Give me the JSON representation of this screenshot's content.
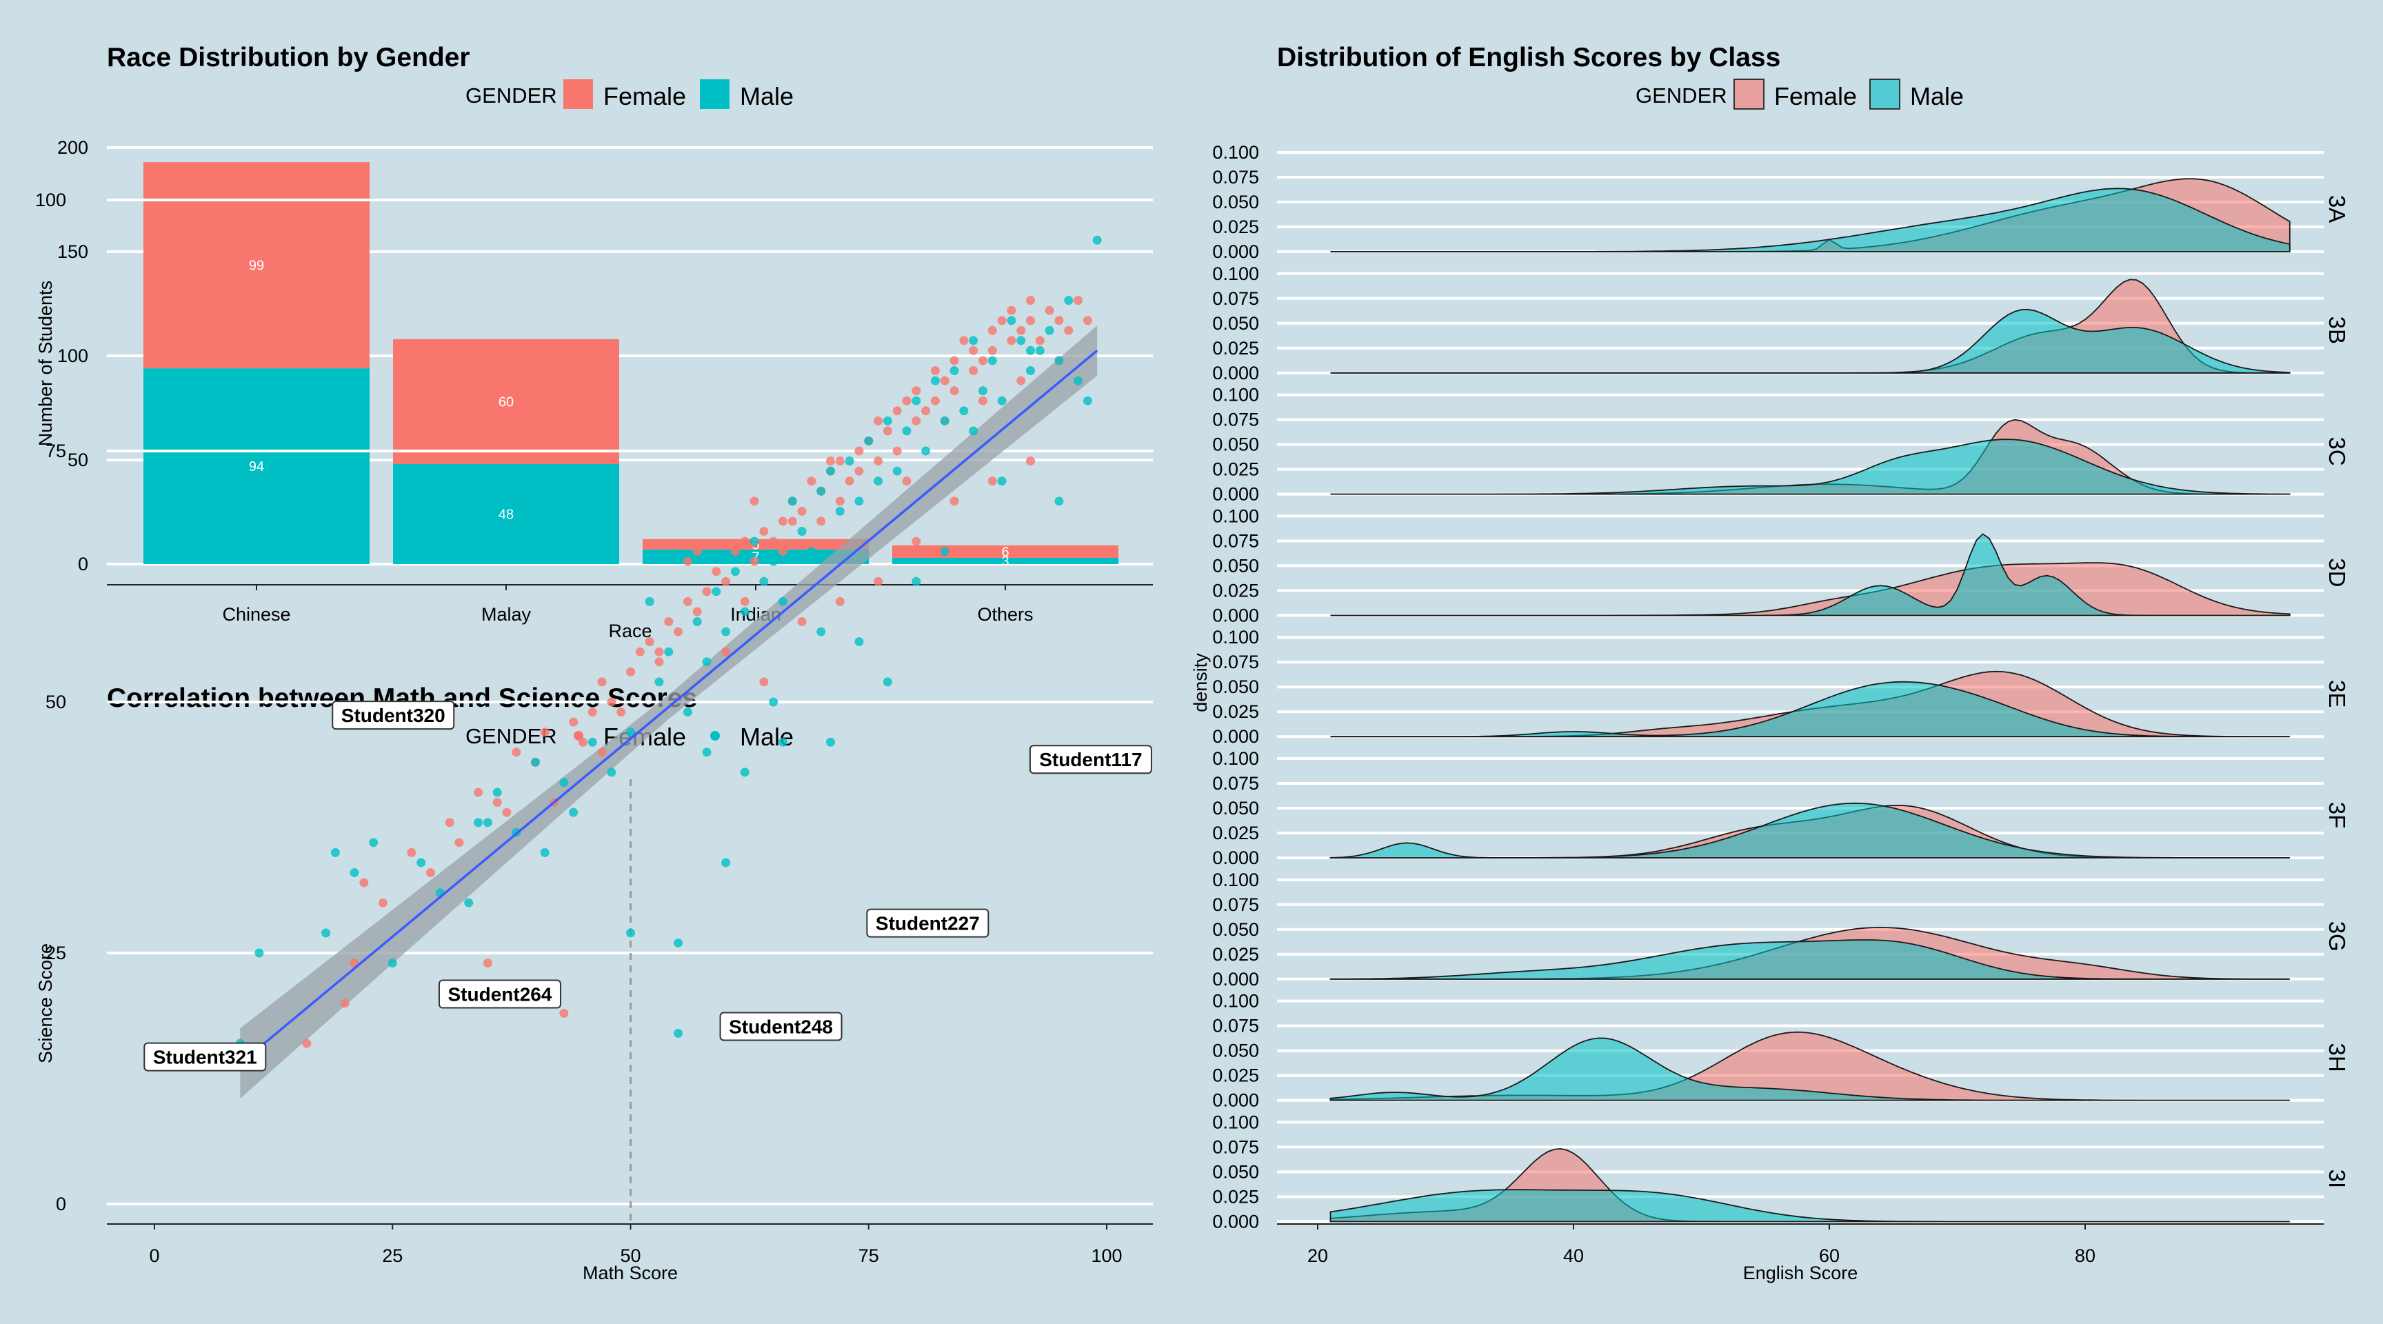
{
  "colors": {
    "female": "#F8766D",
    "male": "#00BFC4",
    "grid": "#ffffff",
    "fit": "#3a5cff",
    "band": "#9aa3a8",
    "refline": "#9a9a9a",
    "bg": "#cddfe6"
  },
  "chart_data": [
    {
      "type": "bar",
      "title": "Race Distribution by Gender",
      "legend_title": "GENDER",
      "xlabel": "Race",
      "ylabel": "Number of Students",
      "categories": [
        "Chinese",
        "Malay",
        "Indian",
        "Others"
      ],
      "series": [
        {
          "name": "Female",
          "values": [
            99,
            60,
            5,
            6
          ]
        },
        {
          "name": "Male",
          "values": [
            94,
            48,
            7,
            3
          ]
        }
      ],
      "ylim": [
        0,
        200
      ],
      "yticks": [
        0,
        50,
        100,
        150,
        200
      ],
      "stacked": true,
      "legend_position": "top"
    },
    {
      "type": "scatter",
      "title": "Correlation between Math and Science Scores",
      "legend_title": "GENDER",
      "xlabel": "Math Score",
      "ylabel": "Science Score",
      "xlim": [
        -9,
        100
      ],
      "ylim": [
        -9,
        105
      ],
      "xticks": [
        0,
        25,
        50,
        75,
        100
      ],
      "yticks": [
        0,
        25,
        50,
        75,
        100
      ],
      "ref_lines": {
        "x": 50,
        "y": 50
      },
      "fit": {
        "type": "linear",
        "x0": 9,
        "y0": 14,
        "x1": 99,
        "y1": 85
      },
      "series": [
        {
          "name": "Female",
          "x": [
            9,
            16,
            20,
            21,
            22,
            24,
            27,
            29,
            31,
            32,
            34,
            36,
            37,
            38,
            40,
            41,
            42,
            44,
            45,
            46,
            47,
            48,
            49,
            50,
            51,
            52,
            53,
            54,
            55,
            56,
            57,
            58,
            59,
            60,
            61,
            62,
            62,
            63,
            64,
            65,
            66,
            66,
            67,
            68,
            69,
            70,
            70,
            71,
            72,
            72,
            73,
            74,
            74,
            75,
            76,
            76,
            77,
            78,
            78,
            79,
            80,
            80,
            81,
            82,
            82,
            83,
            84,
            84,
            85,
            86,
            86,
            87,
            88,
            88,
            89,
            90,
            90,
            91,
            92,
            92,
            93,
            94,
            95,
            96,
            97,
            98,
            56,
            60,
            64,
            68,
            72,
            76,
            80,
            84,
            88,
            92,
            35,
            43,
            47,
            53,
            57,
            63,
            67,
            71,
            75,
            79,
            83,
            87,
            91,
            95
          ],
          "y": [
            15,
            16,
            20,
            24,
            32,
            30,
            35,
            33,
            38,
            36,
            41,
            40,
            39,
            45,
            44,
            47,
            40,
            48,
            46,
            49,
            52,
            50,
            49,
            53,
            55,
            56,
            54,
            58,
            57,
            60,
            59,
            61,
            63,
            62,
            65,
            60,
            66,
            64,
            67,
            66,
            68,
            65,
            70,
            69,
            72,
            68,
            71,
            73,
            70,
            74,
            72,
            75,
            73,
            76,
            74,
            78,
            77,
            79,
            75,
            80,
            78,
            81,
            79,
            83,
            80,
            82,
            84,
            81,
            86,
            83,
            85,
            84,
            87,
            85,
            88,
            86,
            89,
            87,
            88,
            90,
            86,
            89,
            88,
            87,
            90,
            88,
            64,
            55,
            52,
            58,
            60,
            62,
            66,
            70,
            72,
            74,
            24,
            19,
            45,
            55,
            65,
            70,
            68,
            74,
            76,
            72,
            78,
            80,
            82,
            84
          ]
        },
        {
          "name": "Male",
          "x": [
            9,
            11,
            18,
            19,
            21,
            23,
            25,
            28,
            30,
            33,
            34,
            36,
            38,
            40,
            41,
            43,
            44,
            46,
            48,
            50,
            52,
            53,
            54,
            56,
            57,
            58,
            59,
            60,
            61,
            62,
            63,
            64,
            65,
            66,
            67,
            68,
            69,
            70,
            71,
            72,
            73,
            74,
            75,
            76,
            77,
            78,
            79,
            80,
            81,
            82,
            83,
            84,
            85,
            86,
            87,
            88,
            89,
            90,
            91,
            92,
            93,
            94,
            95,
            96,
            97,
            98,
            99,
            25,
            35,
            42,
            50,
            55,
            58,
            62,
            66,
            71,
            74,
            77,
            80,
            83,
            86,
            89,
            92,
            95,
            55,
            60,
            65,
            70
          ],
          "y": [
            16,
            25,
            27,
            35,
            33,
            36,
            48,
            34,
            31,
            30,
            38,
            41,
            37,
            44,
            35,
            42,
            39,
            46,
            43,
            47,
            60,
            52,
            55,
            49,
            58,
            54,
            61,
            57,
            63,
            59,
            66,
            62,
            64,
            60,
            70,
            67,
            65,
            71,
            73,
            69,
            74,
            70,
            76,
            72,
            78,
            73,
            77,
            80,
            75,
            82,
            78,
            83,
            79,
            86,
            81,
            84,
            80,
            88,
            86,
            83,
            85,
            87,
            84,
            90,
            82,
            80,
            96,
            24,
            38,
            20,
            27,
            26,
            45,
            43,
            46,
            46,
            56,
            52,
            62,
            65,
            77,
            72,
            85,
            70,
            17,
            34,
            50,
            57
          ]
        }
      ],
      "annotations": [
        {
          "label": "Student320",
          "x": 25,
          "y": 48
        },
        {
          "label": "Student117",
          "x": 90,
          "y": 46
        },
        {
          "label": "Student227",
          "x": 77,
          "y": 31
        },
        {
          "label": "Student321",
          "x": 9,
          "y": 15
        },
        {
          "label": "Student264",
          "x": 37,
          "y": 24
        },
        {
          "label": "Student248",
          "x": 55,
          "y": 17
        }
      ],
      "legend_position": "top"
    },
    {
      "type": "area",
      "title": "Distribution of English Scores by Class",
      "legend_title": "GENDER",
      "xlabel": "English Score",
      "ylabel": "density",
      "xlim": [
        19,
        98
      ],
      "xticks": [
        20,
        40,
        60,
        80
      ],
      "yticks": [
        0,
        0.025,
        0.05,
        0.075,
        0.1
      ],
      "ytick_labels": [
        "0.000",
        "0.025",
        "0.050",
        "0.075",
        "0.100"
      ],
      "ylim": [
        0,
        0.1
      ],
      "density_x_range": [
        21,
        96
      ],
      "legend_position": "top",
      "panels": [
        {
          "name": "3A",
          "female": [
            [
              60,
              0.5,
              0.01
            ],
            [
              80,
              8,
              0.045
            ],
            [
              90,
              5,
              0.05
            ]
          ],
          "male": [
            [
              72,
              9,
              0.03
            ],
            [
              84,
              6,
              0.05
            ]
          ]
        },
        {
          "name": "3B",
          "female": [
            [
              77,
              4,
              0.04
            ],
            [
              84,
              2.5,
              0.085
            ]
          ],
          "male": [
            [
              75,
              3,
              0.06
            ],
            [
              84,
              4,
              0.045
            ]
          ]
        },
        {
          "name": "3C",
          "female": [
            [
              74,
              2,
              0.06
            ],
            [
              79,
              3,
              0.05
            ],
            [
              60,
              6,
              0.01
            ]
          ],
          "male": [
            [
              65,
              3,
              0.016
            ],
            [
              74,
              6,
              0.055
            ],
            [
              54,
              6,
              0.008
            ]
          ]
        },
        {
          "name": "3D",
          "female": [
            [
              74,
              8,
              0.05
            ],
            [
              84,
              4,
              0.025
            ],
            [
              60,
              3,
              0.005
            ]
          ],
          "male": [
            [
              72,
              1.3,
              0.08
            ],
            [
              64,
              2.5,
              0.03
            ],
            [
              77,
              2,
              0.04
            ]
          ]
        },
        {
          "name": "3E",
          "female": [
            [
              74,
              5,
              0.055
            ],
            [
              62,
              8,
              0.03
            ],
            [
              47,
              3,
              0.003
            ]
          ],
          "male": [
            [
              64,
              6,
              0.048
            ],
            [
              72,
              5,
              0.02
            ],
            [
              40,
              3,
              0.005
            ]
          ]
        },
        {
          "name": "3F",
          "female": [
            [
              66,
              5,
              0.05
            ],
            [
              55,
              5,
              0.028
            ]
          ],
          "male": [
            [
              27,
              2,
              0.015
            ],
            [
              62,
              7,
              0.055
            ]
          ]
        },
        {
          "name": "3G",
          "female": [
            [
              64,
              8,
              0.052
            ],
            [
              80,
              4,
              0.008
            ]
          ],
          "male": [
            [
              54,
              8,
              0.035
            ],
            [
              66,
              5,
              0.025
            ],
            [
              36,
              5,
              0.005
            ]
          ]
        },
        {
          "name": "3H",
          "female": [
            [
              56,
              5,
              0.048
            ],
            [
              62,
              6,
              0.03
            ],
            [
              36,
              8,
              0.005
            ]
          ],
          "male": [
            [
              42,
              4,
              0.061
            ],
            [
              26,
              3,
              0.008
            ],
            [
              54,
              6,
              0.012
            ]
          ]
        },
        {
          "name": "3I",
          "female": [
            [
              39,
              3,
              0.07
            ],
            [
              30,
              6,
              0.01
            ]
          ],
          "male": [
            [
              33,
              8,
              0.03
            ],
            [
              47,
              6,
              0.022
            ]
          ]
        }
      ]
    }
  ]
}
